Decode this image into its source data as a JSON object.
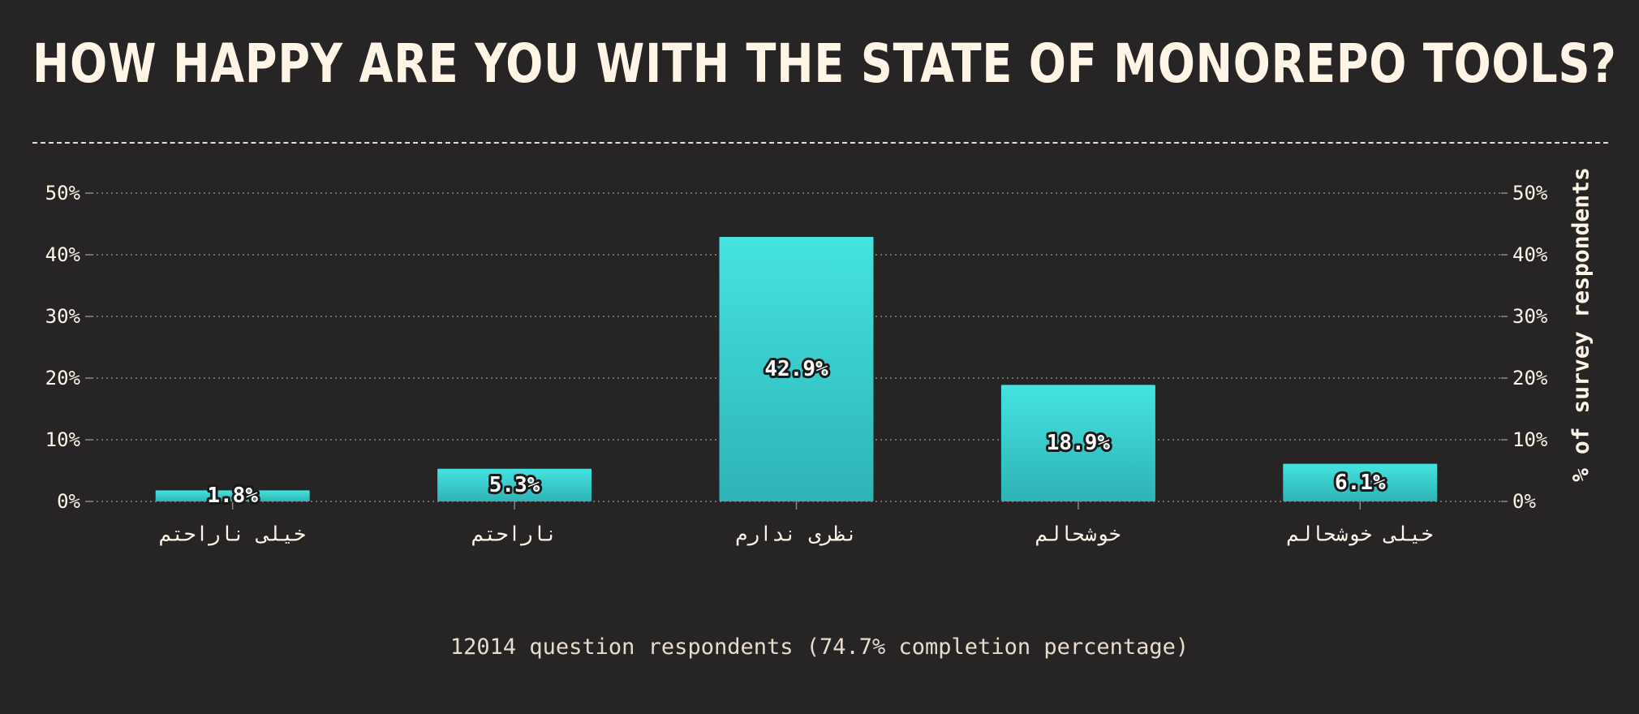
{
  "title": "HOW HAPPY ARE YOU WITH THE STATE OF MONOREPO TOOLS?",
  "footer": "12014 question respondents (74.7% completion percentage)",
  "colors": {
    "background": "#262425",
    "bar_top": "#45e3e0",
    "bar_bottom": "#2eb3b6",
    "text": "#fff5e6"
  },
  "chart_data": {
    "type": "bar",
    "categories": [
      "خیلی ناراحتم",
      "ناراحتم",
      "نظری ندارم",
      "خوشحالم",
      "خیلی خوشحالم"
    ],
    "values": [
      1.8,
      5.3,
      42.9,
      18.9,
      6.1
    ],
    "value_labels": [
      "1.8%",
      "5.3%",
      "42.9%",
      "18.9%",
      "6.1%"
    ],
    "ylabel": "% of survey respondents",
    "ylim": [
      0,
      50
    ],
    "yticks": [
      0,
      10,
      20,
      30,
      40,
      50
    ],
    "ytick_labels": [
      "0%",
      "10%",
      "20%",
      "30%",
      "40%",
      "50%"
    ],
    "grid": true,
    "legend": "none"
  }
}
